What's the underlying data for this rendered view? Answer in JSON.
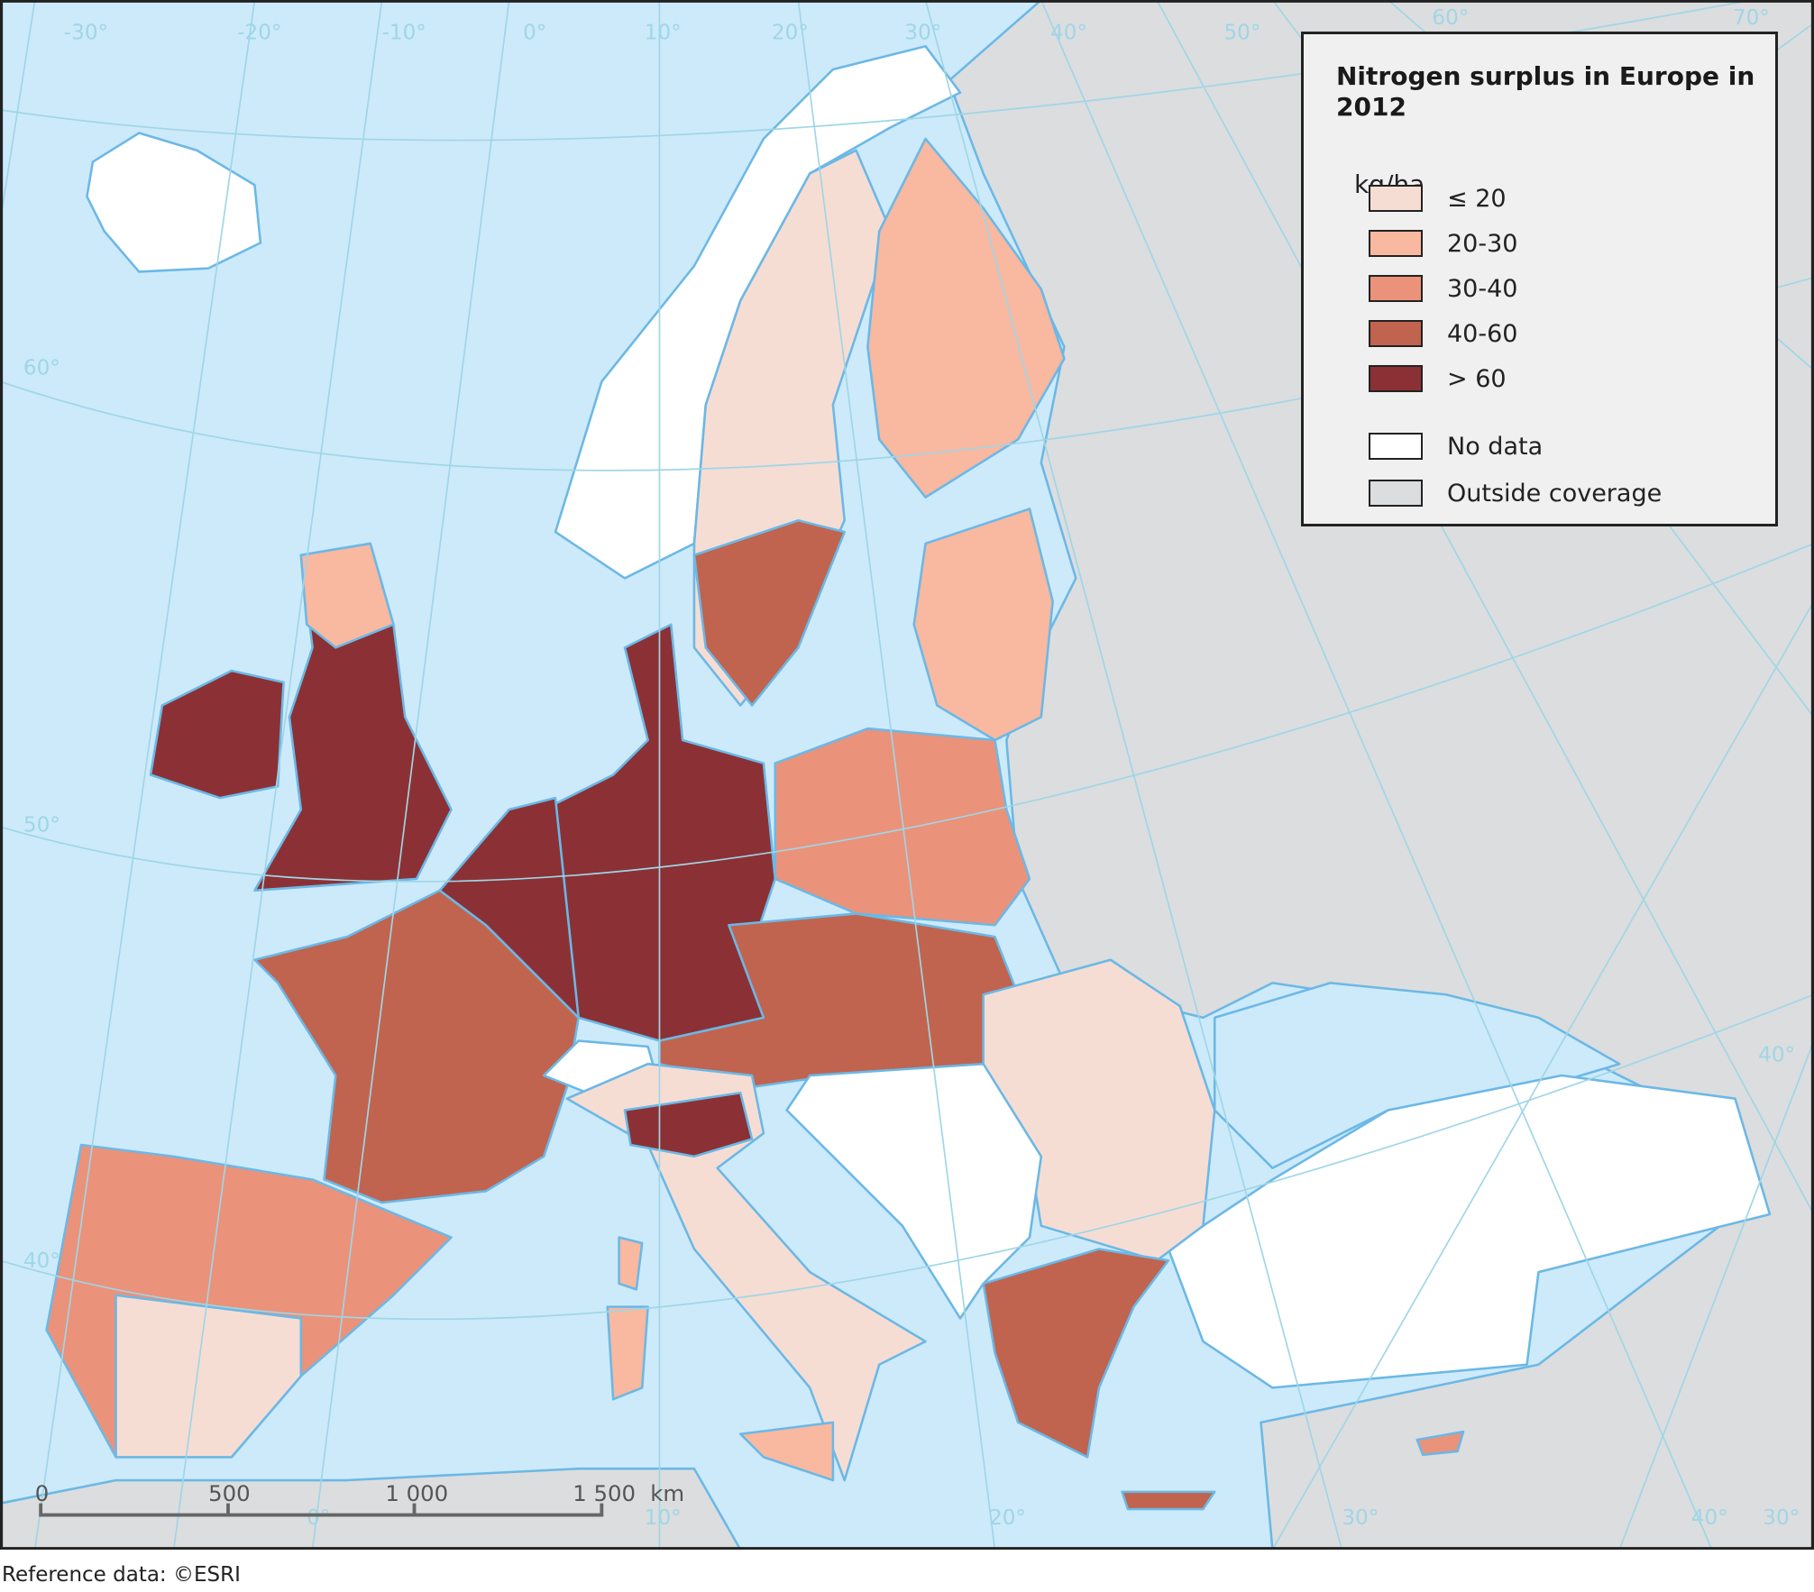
{
  "legend": {
    "title": "Nitrogen surplus in Europe in 2012",
    "unit": "kg/ha",
    "classes": [
      {
        "label": "≤ 20",
        "color": "#f6ddd4"
      },
      {
        "label": "20-30",
        "color": "#f9b8a0"
      },
      {
        "label": "30-40",
        "color": "#eb927a"
      },
      {
        "label": "40-60",
        "color": "#c0644f"
      },
      {
        "label": "> 60",
        "color": "#8b3135"
      }
    ],
    "other": [
      {
        "label": "No data",
        "color": "#ffffff"
      },
      {
        "label": "Outside coverage",
        "color": "#dcdddf"
      }
    ]
  },
  "colors": {
    "sea": "#cdeafa",
    "coastline": "#6bb8e6",
    "graticule": "#9fd6e6",
    "border": "#808080"
  },
  "graticule_labels": [
    "-30°",
    "-20°",
    "-10°",
    "0°",
    "10°",
    "20°",
    "30°",
    "40°",
    "50°",
    "60°",
    "70°",
    "60°",
    "50°",
    "40°",
    "0°",
    "10°",
    "20°",
    "30°",
    "40°",
    "30°",
    "40°"
  ],
  "scale_bar": {
    "ticks": [
      "0",
      "500",
      "1 000",
      "1 500"
    ],
    "unit": "km"
  },
  "source": "Reference data: ©ESRI"
}
